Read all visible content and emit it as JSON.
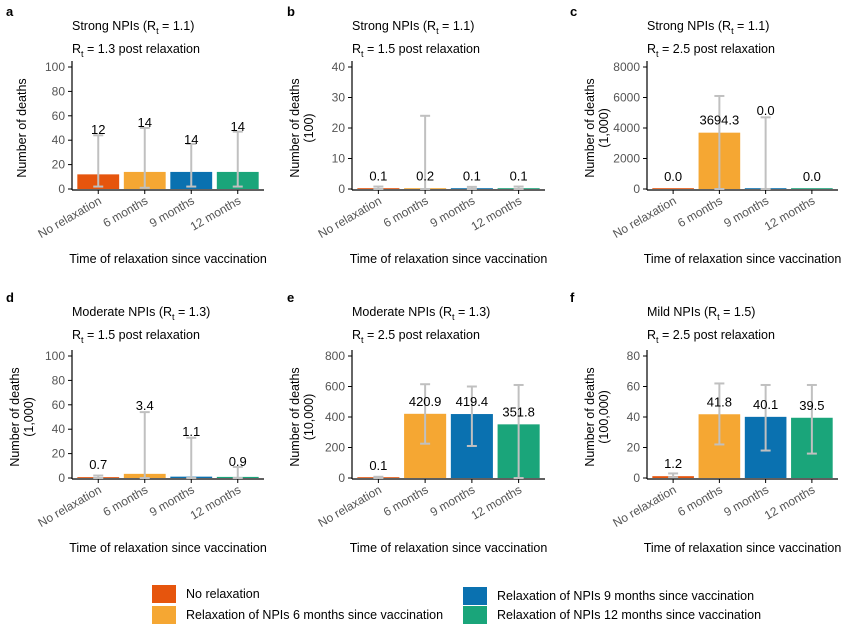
{
  "colors": {
    "series": [
      "#e6550d",
      "#f5a733",
      "#0a71b0",
      "#1aa57a"
    ],
    "errorbar": "#c0c0c0",
    "axis": "#000000",
    "tick_text": "#555555"
  },
  "legend": {
    "items": [
      {
        "label": "No relaxation",
        "color": "#e6550d"
      },
      {
        "label": "Relaxation of NPIs 6 months since vaccination",
        "color": "#f5a733"
      },
      {
        "label": "Relaxation of NPIs 9 months since vaccination",
        "color": "#0a71b0"
      },
      {
        "label": "Relaxation of NPIs 12 months since vaccination",
        "color": "#1aa57a"
      }
    ]
  },
  "chart_data": [
    {
      "panel": "a",
      "type": "bar",
      "title_main": "Strong NPIs (R",
      "title_sub": "t",
      "title_tail": " = 1.1)",
      "subtitle_main": "R",
      "subtitle_sub": "t",
      "subtitle_tail": " = 1.3 post relaxation",
      "ylabel": [
        "Number of deaths"
      ],
      "xlabel": "Time of relaxation since vaccination",
      "categories": [
        "No relaxation",
        "6 months",
        "9 months",
        "12 months"
      ],
      "values": [
        12,
        14,
        14,
        14
      ],
      "labels": [
        "12",
        "14",
        "14",
        "14"
      ],
      "error_low": [
        2,
        1,
        2,
        2
      ],
      "error_high": [
        44,
        50,
        37,
        47
      ],
      "ylim": [
        0,
        100
      ],
      "yticks": [
        0,
        20,
        40,
        60,
        80,
        100
      ]
    },
    {
      "panel": "b",
      "type": "bar",
      "title_main": "Strong NPIs (R",
      "title_sub": "t",
      "title_tail": " = 1.1)",
      "subtitle_main": "R",
      "subtitle_sub": "t",
      "subtitle_tail": " = 1.5 post relaxation",
      "ylabel": [
        "Number of deaths",
        "(100)"
      ],
      "xlabel": "Time of relaxation since vaccination",
      "categories": [
        "No relaxation",
        "6 months",
        "9 months",
        "12 months"
      ],
      "values": [
        0.1,
        0.2,
        0.1,
        0.1
      ],
      "labels": [
        "0.1",
        "0.2",
        "0.1",
        "0.1"
      ],
      "error_low": [
        0,
        0,
        0,
        0
      ],
      "error_high": [
        0.8,
        24,
        0.7,
        0.8
      ],
      "ylim": [
        0,
        40
      ],
      "yticks": [
        0,
        10,
        20,
        30,
        40
      ]
    },
    {
      "panel": "c",
      "type": "bar",
      "title_main": "Strong NPIs (R",
      "title_sub": "t",
      "title_tail": " = 1.1)",
      "subtitle_main": "R",
      "subtitle_sub": "t",
      "subtitle_tail": " = 2.5 post relaxation",
      "ylabel": [
        "Number of deaths",
        "(1,000)"
      ],
      "xlabel": "Time of relaxation since vaccination",
      "categories": [
        "No relaxation",
        "6 months",
        "9 months",
        "12 months"
      ],
      "values": [
        0.0,
        3694.3,
        0.0,
        0.0
      ],
      "labels": [
        "0.0",
        "3694.3",
        "0.0",
        "0.0"
      ],
      "error_low": [
        null,
        0,
        0,
        null
      ],
      "error_high": [
        null,
        6100,
        4700,
        null
      ],
      "ylim": [
        0,
        8000
      ],
      "yticks": [
        0,
        2000,
        4000,
        6000,
        8000
      ]
    },
    {
      "panel": "d",
      "type": "bar",
      "title_main": "Moderate NPIs (R",
      "title_sub": "t",
      "title_tail": " = 1.3)",
      "subtitle_main": "R",
      "subtitle_sub": "t",
      "subtitle_tail": " = 1.5 post relaxation",
      "ylabel": [
        "Number of deaths",
        "(1,000)"
      ],
      "xlabel": "Time of relaxation since vaccination",
      "categories": [
        "No relaxation",
        "6 months",
        "9 months",
        "12 months"
      ],
      "values": [
        0.7,
        3.4,
        1.1,
        0.9
      ],
      "labels": [
        "0.7",
        "3.4",
        "1.1",
        "0.9"
      ],
      "error_low": [
        0,
        0,
        0,
        0
      ],
      "error_high": [
        2,
        54,
        33,
        9
      ],
      "ylim": [
        0,
        100
      ],
      "yticks": [
        0,
        20,
        40,
        60,
        80,
        100
      ]
    },
    {
      "panel": "e",
      "type": "bar",
      "title_main": "Moderate NPIs (R",
      "title_sub": "t",
      "title_tail": " = 1.3)",
      "subtitle_main": "R",
      "subtitle_sub": "t",
      "subtitle_tail": " = 2.5 post relaxation",
      "ylabel": [
        "Number of deaths",
        "(10,000)"
      ],
      "xlabel": "Time of relaxation since vaccination",
      "categories": [
        "No relaxation",
        "6 months",
        "9 months",
        "12 months"
      ],
      "values": [
        0.1,
        420.9,
        419.4,
        351.8
      ],
      "labels": [
        "0.1",
        "420.9",
        "419.4",
        "351.8"
      ],
      "error_low": [
        0,
        225,
        210,
        0
      ],
      "error_high": [
        8,
        615,
        600,
        610
      ],
      "ylim": [
        0,
        800
      ],
      "yticks": [
        0,
        200,
        400,
        600,
        800
      ]
    },
    {
      "panel": "f",
      "type": "bar",
      "title_main": "Mild NPIs (R",
      "title_sub": "t",
      "title_tail": " = 1.5)",
      "subtitle_main": "R",
      "subtitle_sub": "t",
      "subtitle_tail": " = 2.5 post relaxation",
      "ylabel": [
        "Number of deaths",
        "(100,000)"
      ],
      "xlabel": "Time of relaxation since vaccination",
      "categories": [
        "No relaxation",
        "6 months",
        "9 months",
        "12 months"
      ],
      "values": [
        1.2,
        41.8,
        40.1,
        39.5
      ],
      "labels": [
        "1.2",
        "41.8",
        "40.1",
        "39.5"
      ],
      "error_low": [
        0.5,
        22,
        18,
        16
      ],
      "error_high": [
        3,
        62,
        61,
        61
      ],
      "ylim": [
        0,
        80
      ],
      "yticks": [
        0,
        20,
        40,
        60,
        80
      ]
    }
  ]
}
